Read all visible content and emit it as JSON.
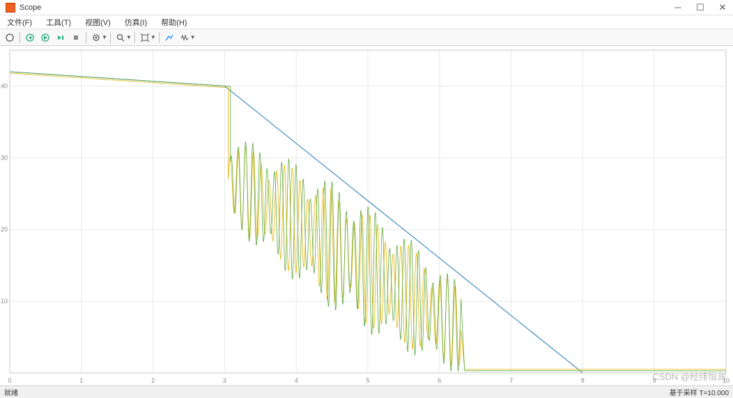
{
  "titlebar": {
    "title": "Scope"
  },
  "menubar": {
    "items": [
      {
        "label": "文件(F)"
      },
      {
        "label": "工具(T)"
      },
      {
        "label": "视图(V)"
      },
      {
        "label": "仿真(I)"
      },
      {
        "label": "帮助(H)"
      }
    ]
  },
  "toolbar": {
    "icons": {
      "print": "print-icon",
      "step_back": "step-back-icon",
      "play": "play-icon",
      "step_fwd": "step-forward-icon",
      "stop": "stop-icon",
      "zoom": "zoom-icon",
      "autoscale": "autoscale-icon",
      "cursor": "cursor-icon",
      "settings": "settings-icon"
    }
  },
  "statusbar": {
    "left": "就绪",
    "right": "基于采样   T=10.000"
  },
  "watermark": "CSDN @经纬恒润",
  "chart": {
    "type": "line",
    "background_color": "#ffffff",
    "grid_color": "#e8e8e8",
    "axis_color": "#888888",
    "font_size": 9,
    "xlim": [
      0,
      10
    ],
    "ylim": [
      0,
      45
    ],
    "xtick_step": 1,
    "ytick_step": 10,
    "xtick_labels": [
      "0",
      "1",
      "2",
      "3",
      "4",
      "5",
      "6",
      "7",
      "8",
      "9",
      "10"
    ],
    "ytick_labels": [
      "0",
      "10",
      "20",
      "30",
      "40"
    ],
    "series": [
      {
        "name": "blue-curve",
        "color": "#1f77b4",
        "line_width": 1.0,
        "x": [
          0,
          3,
          8,
          10
        ],
        "y": [
          42,
          40,
          0,
          0
        ]
      },
      {
        "name": "yellow-osc",
        "color": "#e2b400",
        "line_width": 0.8,
        "base_x": [
          0,
          3
        ],
        "base_y": [
          41.8,
          39.8
        ],
        "osc_start_x": 3.05,
        "osc_end_x": 6.3,
        "osc_start_center": 27,
        "osc_end_center": 6,
        "osc_amplitude": 8,
        "osc_freq": 30,
        "post_x": [
          6.35,
          6.5,
          10
        ],
        "post_y": [
          0.5,
          0.5,
          0.5
        ]
      },
      {
        "name": "green-osc",
        "color": "#5fa83c",
        "line_width": 0.8,
        "base_x": [
          0,
          3
        ],
        "base_y": [
          42,
          40
        ],
        "osc_start_x": 3.08,
        "osc_end_x": 6.3,
        "osc_start_center": 27,
        "osc_end_center": 6,
        "osc_amplitude": 9,
        "osc_freq": 32,
        "post_x": [
          6.35,
          6.5,
          10
        ],
        "post_y": [
          0.3,
          0.3,
          0.3
        ]
      }
    ]
  }
}
